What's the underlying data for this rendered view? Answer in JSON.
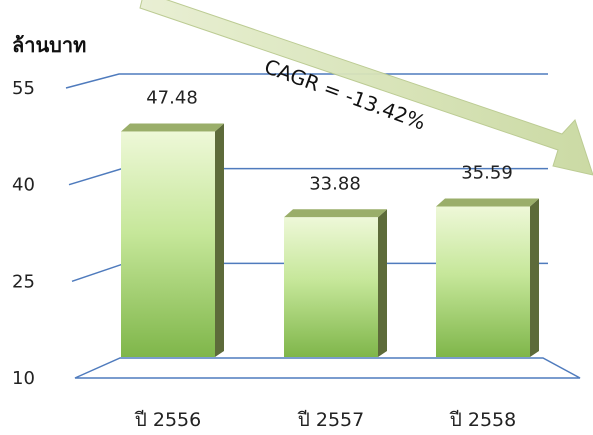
{
  "chart_data": {
    "type": "bar",
    "unit_label": "ล้านบาท",
    "categories": [
      "ปี 2556",
      "ปี 2557",
      "ปี 2558"
    ],
    "values": [
      47.48,
      33.88,
      35.59
    ],
    "data_labels": [
      "47.48",
      "33.88",
      "35.59"
    ],
    "y_ticks": [
      10,
      25,
      40,
      55
    ],
    "ylim": [
      10,
      55
    ],
    "grid": true,
    "bar_style": "3d-gradient-green",
    "annotation": {
      "text": "CAGR = -13.42%",
      "style": "downward-arrow"
    },
    "colors": {
      "bar_top": "#9aae6a",
      "bar_light": "#e9f6cf",
      "bar_dark": "#7fb64a",
      "bar_side": "#5d6b3a",
      "gridline": "#4f7bbd",
      "arrow_fill": "#d7e4b6"
    }
  }
}
